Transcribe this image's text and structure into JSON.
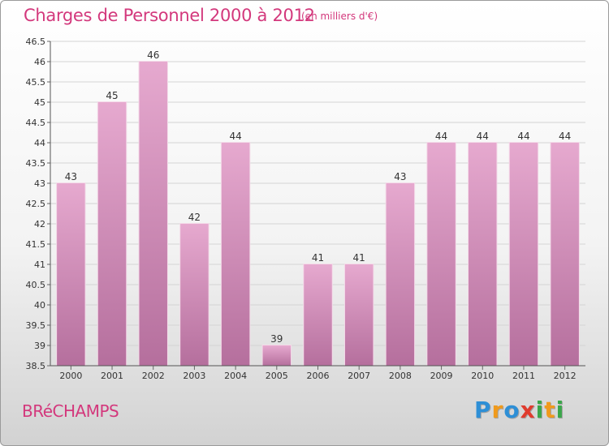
{
  "header": {
    "title": "Charges de Personnel 2000 à 2012",
    "subtitle": "(en milliers d'€)"
  },
  "commune": "BRéCHAMPS",
  "logo": {
    "text": "Proxiti",
    "letters": [
      {
        "char": "P",
        "color": "#2e8fd6"
      },
      {
        "char": "r",
        "color": "#f09a1c"
      },
      {
        "char": "o",
        "color": "#2e8fd6"
      },
      {
        "char": "x",
        "color": "#e03c2e"
      },
      {
        "char": "i",
        "color": "#3aa64a"
      },
      {
        "char": "t",
        "color": "#f09a1c"
      },
      {
        "char": "i",
        "color": "#3aa64a"
      }
    ]
  },
  "colors": {
    "accent": "#d3387c",
    "bar_top": "#e6a9cf",
    "bar_bottom": "#b56f9d"
  },
  "chart_data": {
    "type": "bar",
    "categories": [
      "2000",
      "2001",
      "2002",
      "2003",
      "2004",
      "2005",
      "2006",
      "2007",
      "2008",
      "2009",
      "2010",
      "2011",
      "2012"
    ],
    "values": [
      43,
      45,
      46,
      42,
      44,
      39,
      41,
      41,
      43,
      44,
      44,
      44,
      44
    ],
    "data_labels": [
      "43",
      "45",
      "46",
      "42",
      "44",
      "39",
      "41",
      "41",
      "43",
      "44",
      "44",
      "44",
      "44"
    ],
    "ylim": [
      38.5,
      46.5
    ],
    "yticks": [
      "38.5",
      "39",
      "39.5",
      "40",
      "40.5",
      "41",
      "41.5",
      "42",
      "42.5",
      "43",
      "43.5",
      "44",
      "44.5",
      "45",
      "45.5",
      "46",
      "46.5"
    ],
    "grid": true,
    "legend": "none"
  }
}
